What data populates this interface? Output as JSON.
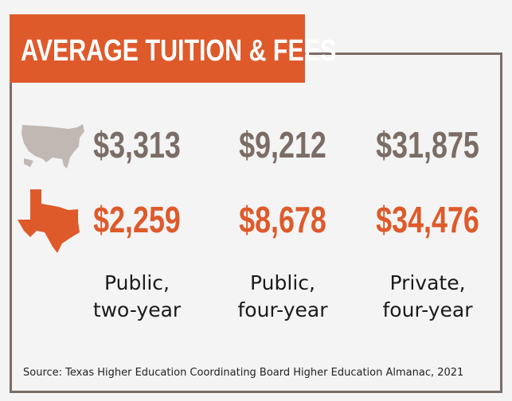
{
  "header": {
    "title": "AVERAGE TUITION & FEES"
  },
  "table": {
    "rows": [
      [
        "$3,313",
        "$9,212",
        "$31,875"
      ],
      [
        "$2,259",
        "$8,678",
        "$34,476"
      ]
    ],
    "columns": [
      [
        "Public,",
        "two-year"
      ],
      [
        "Public,",
        "four-year"
      ],
      [
        "Private,",
        "four-year"
      ]
    ]
  },
  "source": "Source: Texas Higher Education Coordinating Board Higher Education Almanac, 2021"
}
